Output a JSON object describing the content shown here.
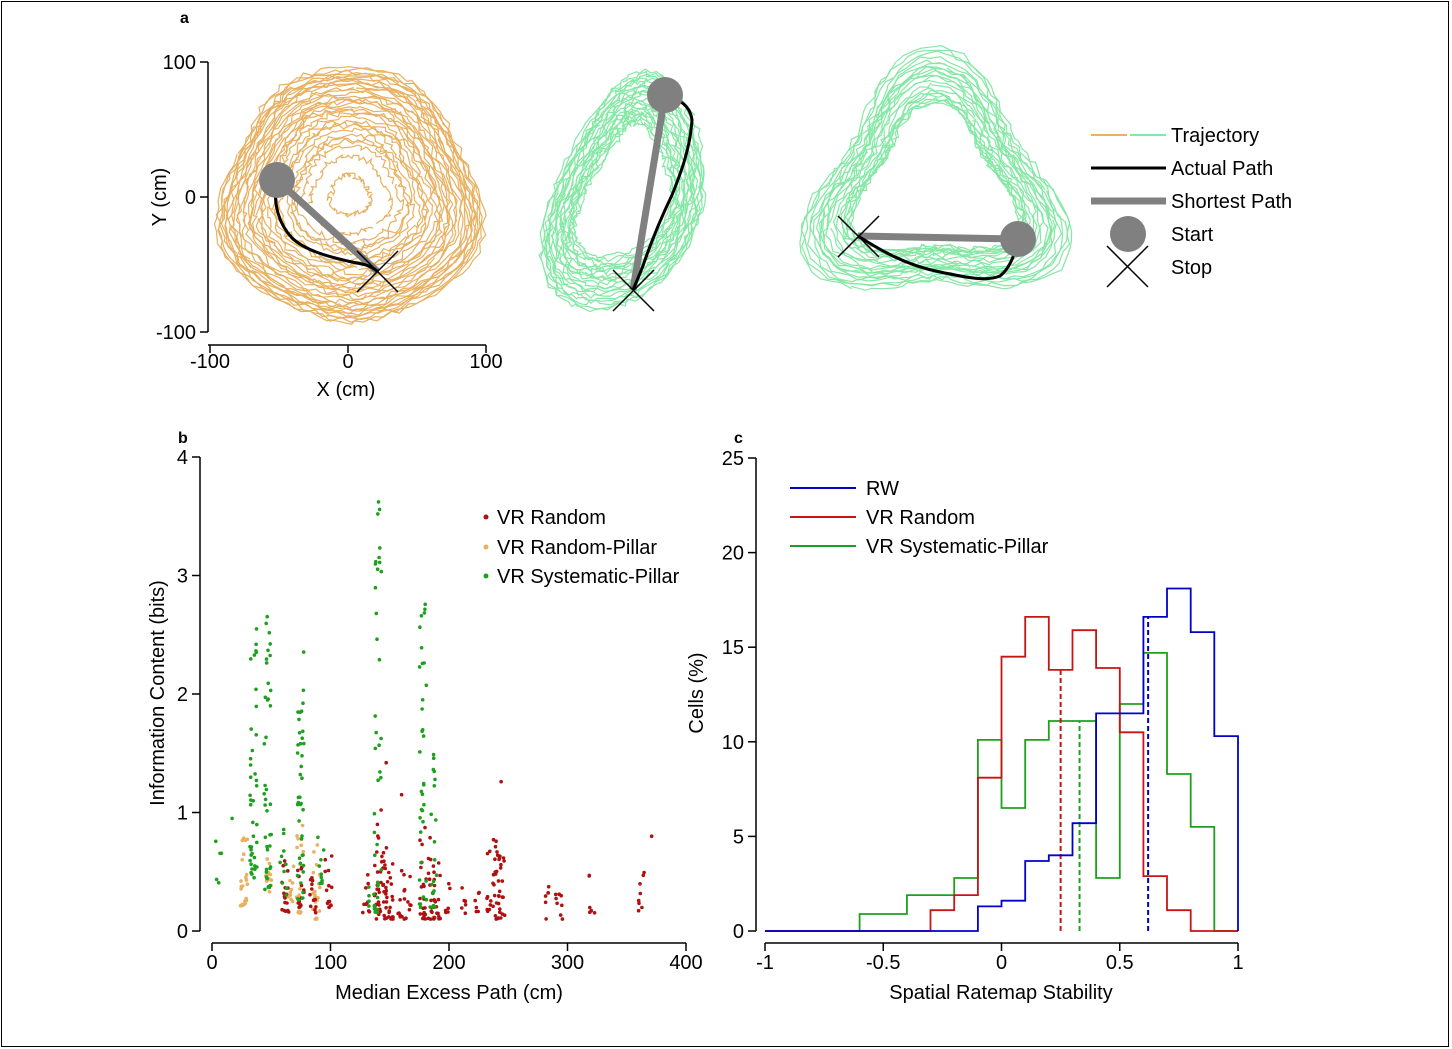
{
  "panel_a": {
    "label": "a",
    "xlabel": "X (cm)",
    "ylabel": "Y (cm)",
    "xticks": [
      "-100",
      "0",
      "100"
    ],
    "yticks": [
      "100",
      "0",
      "-100"
    ],
    "legend": [
      "Trajectory",
      "Actual Path",
      "Shortest Path",
      "Start",
      "Stop"
    ],
    "colors": {
      "trajectory_real": "#e8b060",
      "trajectory_vr": "#84e8a4",
      "actual": "#000000",
      "shortest": "#808080",
      "start": "#808080"
    }
  },
  "panel_b": {
    "label": "b",
    "xlabel": "Median Excess Path (cm)",
    "ylabel": "Information Content (bits)",
    "xticks": [
      "0",
      "100",
      "200",
      "300",
      "400"
    ],
    "yticks": [
      "0",
      "1",
      "2",
      "3",
      "4"
    ],
    "legend": [
      "VR Random",
      "VR Random-Pillar",
      "VR Systematic-Pillar"
    ]
  },
  "panel_c": {
    "label": "c",
    "xlabel": "Spatial Ratemap Stability",
    "ylabel": "Cells (%)",
    "xticks": [
      "-1",
      "-0.5",
      "0",
      "0.5",
      "1"
    ],
    "yticks": [
      "0",
      "5",
      "10",
      "15",
      "20",
      "25"
    ],
    "legend": [
      "RW",
      "VR Random",
      "VR Systematic-Pillar"
    ]
  },
  "chart_data": [
    {
      "type": "scatter",
      "title": "",
      "xlabel": "X (cm)",
      "ylabel": "Y (cm)",
      "xlim": [
        -100,
        100
      ],
      "ylim": [
        -100,
        100
      ],
      "series": [
        {
          "name": "Trajectory",
          "note": "random-foraging trajectories (three environments)"
        },
        {
          "name": "Actual Path",
          "x": [
            -52,
            -50,
            -45,
            -38,
            -30,
            -20,
            -10,
            0,
            10,
            20
          ],
          "y": [
            -2,
            -15,
            -28,
            -38,
            -44,
            -47,
            -49,
            -50,
            -50,
            -54
          ]
        },
        {
          "name": "Shortest Path",
          "x": [
            -52,
            20
          ],
          "y": [
            13,
            -54
          ]
        },
        {
          "name": "Start",
          "x": [
            -52
          ],
          "y": [
            13
          ]
        },
        {
          "name": "Stop",
          "x": [
            20
          ],
          "y": [
            -54
          ]
        }
      ]
    },
    {
      "type": "scatter",
      "title": "",
      "xlabel": "Median Excess Path (cm)",
      "ylabel": "Information Content (bits)",
      "xlim": [
        0,
        400
      ],
      "ylim": [
        0,
        4
      ],
      "series": [
        {
          "name": "VR Random",
          "columns": [
            [
              62,
              0.15,
              0.65,
              18
            ],
            [
              75,
              0.2,
              0.55,
              14
            ],
            [
              85,
              0.15,
              0.5,
              12
            ],
            [
              98,
              0.2,
              0.65,
              14
            ],
            [
              130,
              0.15,
              0.5,
              10
            ],
            [
              140,
              0.1,
              1.05,
              22
            ],
            [
              145,
              0.1,
              0.8,
              22
            ],
            [
              150,
              0.1,
              0.6,
              16
            ],
            [
              160,
              0.12,
              0.65,
              10
            ],
            [
              165,
              0.1,
              0.5,
              8
            ],
            [
              178,
              0.1,
              0.9,
              22
            ],
            [
              185,
              0.1,
              0.85,
              20
            ],
            [
              190,
              0.1,
              0.6,
              12
            ],
            [
              200,
              0.15,
              0.4,
              6
            ],
            [
              212,
              0.15,
              0.5,
              6
            ],
            [
              225,
              0.15,
              0.45,
              6
            ],
            [
              235,
              0.15,
              0.7,
              10
            ],
            [
              240,
              0.1,
              0.8,
              22
            ],
            [
              244,
              0.1,
              0.7,
              16
            ],
            [
              283,
              0.1,
              0.45,
              6
            ],
            [
              293,
              0.1,
              0.5,
              8
            ],
            [
              320,
              0.15,
              0.5,
              6
            ],
            [
              362,
              0.1,
              0.5,
              8
            ]
          ],
          "extra": [
            [
              147,
              1.42
            ],
            [
              160,
              1.15
            ],
            [
              244,
              1.26
            ],
            [
              371,
              0.8
            ]
          ]
        },
        {
          "name": "VR Random-Pillar",
          "columns": [
            [
              27,
              0.2,
              0.85,
              22
            ],
            [
              48,
              0.25,
              0.7,
              14
            ],
            [
              66,
              0.25,
              0.6,
              10
            ],
            [
              74,
              0.15,
              0.9,
              18
            ],
            [
              88,
              0.1,
              0.75,
              22
            ]
          ]
        },
        {
          "name": "VR Systematic-Pillar",
          "columns": [
            [
              35,
              0.45,
              2.55,
              40
            ],
            [
              47,
              0.35,
              2.75,
              40
            ],
            [
              75,
              0.2,
              2.45,
              40
            ],
            [
              140,
              0.15,
              3.65,
              34
            ],
            [
              178,
              0.2,
              2.78,
              34
            ],
            [
              187,
              0.2,
              1.5,
              20
            ],
            [
              5,
              0.4,
              0.8,
              5
            ],
            [
              16,
              0.95,
              0.95,
              1
            ],
            [
              60,
              0.3,
              0.9,
              10
            ],
            [
              92,
              0.3,
              0.9,
              10
            ],
            [
              135,
              0.2,
              0.5,
              6
            ]
          ]
        }
      ]
    },
    {
      "type": "line",
      "title": "",
      "xlabel": "Spatial Ratemap Stability",
      "ylabel": "Cells (%)",
      "xlim": [
        -1,
        1
      ],
      "ylim": [
        0,
        25
      ],
      "bin_edges": [
        -1,
        -0.9,
        -0.8,
        -0.7,
        -0.6,
        -0.5,
        -0.4,
        -0.3,
        -0.2,
        -0.1,
        0,
        0.1,
        0.2,
        0.3,
        0.4,
        0.5,
        0.6,
        0.7,
        0.8,
        0.9,
        1
      ],
      "series": [
        {
          "name": "RW",
          "color": "#0000c8",
          "values": [
            0,
            0,
            0,
            0,
            0,
            0,
            0,
            0,
            0,
            1.3,
            1.6,
            3.7,
            4.0,
            5.7,
            11.5,
            11.5,
            16.6,
            18.1,
            15.8,
            10.3
          ],
          "median": 0.62
        },
        {
          "name": "VR Random",
          "color": "#c81414",
          "values": [
            0,
            0,
            0,
            0,
            0,
            0,
            0,
            1.1,
            1.9,
            8.1,
            14.5,
            16.6,
            13.8,
            15.9,
            13.9,
            10.5,
            2.9,
            1.1,
            0,
            0
          ],
          "median": 0.25
        },
        {
          "name": "VR Systematic-Pillar",
          "color": "#1ea01e",
          "values": [
            0,
            0,
            0,
            0,
            0.9,
            0.9,
            1.9,
            1.9,
            2.8,
            10.1,
            6.5,
            10.1,
            11.1,
            11.1,
            2.8,
            12.0,
            14.7,
            8.3,
            5.5,
            0
          ],
          "median": 0.33
        }
      ]
    }
  ]
}
